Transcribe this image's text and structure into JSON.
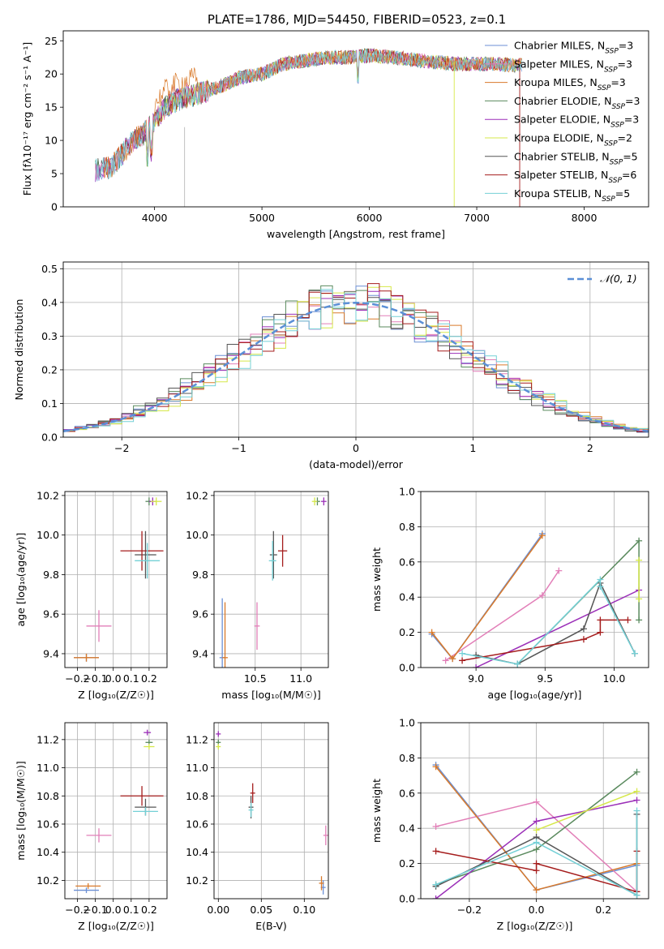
{
  "page_title": "PLATE=1786, MJD=54450, FIBERID=0523, z=0.1",
  "series_names": [
    "Chabrier MILES, N_SSP=3",
    "Salpeter MILES, N_SSP=3",
    "Kroupa MILES, N_SSP=3",
    "Chabrier ELODIE, N_SSP=3",
    "Salpeter ELODIE, N_SSP=3",
    "Kroupa ELODIE, N_SSP=2",
    "Chabrier STELIB, N_SSP=5",
    "Salpeter STELIB, N_SSP=6",
    "Kroupa STELIB, N_SSP=5"
  ],
  "colors": [
    "#6b8fd4",
    "#e27fb8",
    "#d97a2b",
    "#5a8a5e",
    "#9b2fb8",
    "#d6e84a",
    "#555555",
    "#a51d1d",
    "#74d0d6"
  ],
  "chart_data": [
    {
      "id": "spectrum",
      "type": "line",
      "title": "PLATE=1786, MJD=54450, FIBERID=0523, z=0.1",
      "xlabel": "wavelength [Angstrom, rest frame]",
      "ylabel": "Flux [fλ10⁻¹⁷ erg cm⁻² s⁻¹ A⁻¹]",
      "xlim": [
        3150,
        8600
      ],
      "ylim": [
        0,
        26.5
      ],
      "xticks": [
        4000,
        5000,
        6000,
        7000,
        8000
      ],
      "yticks": [
        0,
        5,
        10,
        15,
        20,
        25
      ],
      "legend": [
        "Chabrier MILES, N_SSP=3",
        "Salpeter MILES, N_SSP=3",
        "Kroupa MILES, N_SSP=3",
        "Chabrier ELODIE, N_SSP=3",
        "Salpeter ELODIE, N_SSP=3",
        "Kroupa ELODIE, N_SSP=2",
        "Chabrier STELIB, N_SSP=5",
        "Salpeter STELIB, N_SSP=6",
        "Kroupa STELIB, N_SSP=5"
      ],
      "legend_position": "right",
      "approx_continuum": [
        [
          3450,
          5.5
        ],
        [
          3600,
          6
        ],
        [
          3700,
          8
        ],
        [
          3800,
          10
        ],
        [
          3900,
          11
        ],
        [
          4000,
          13
        ],
        [
          4100,
          15
        ],
        [
          4200,
          16
        ],
        [
          4400,
          17
        ],
        [
          4600,
          18
        ],
        [
          4800,
          19.5
        ],
        [
          5000,
          20
        ],
        [
          5200,
          21.5
        ],
        [
          5400,
          22
        ],
        [
          5600,
          22.5
        ],
        [
          5800,
          22.5
        ],
        [
          6000,
          22.8
        ],
        [
          6200,
          22.5
        ],
        [
          6500,
          22
        ],
        [
          6800,
          21.5
        ],
        [
          7000,
          21.5
        ],
        [
          7200,
          21.5
        ],
        [
          7400,
          21.3
        ]
      ]
    },
    {
      "id": "residuals",
      "type": "line",
      "xlabel": "(data-model)/error",
      "ylabel": "Normed distribution",
      "xlim": [
        -2.5,
        2.5
      ],
      "ylim": [
        0,
        0.52
      ],
      "xticks": [
        -2,
        -1,
        0,
        1,
        2
      ],
      "xtick_labels": [
        "−2",
        "−1",
        "0",
        "1",
        "2"
      ],
      "yticks": [
        0,
        0.1,
        0.2,
        0.3,
        0.4,
        0.5
      ],
      "ytick_labels": [
        "0.0",
        "0.1",
        "0.2",
        "0.3",
        "0.4",
        "0.5"
      ],
      "legend": [
        "𝒩(0, 1)"
      ],
      "legend_position": "top-right",
      "gaussian": {
        "mu": 0,
        "sigma": 1,
        "style": "dashed",
        "color": "#5b8fd6"
      },
      "histogram_bins": 50
    },
    {
      "id": "age_vs_Z",
      "type": "scatter",
      "xlabel": "Z [log₁₀(Z/Z☉)]",
      "ylabel": "age  [log₁₀(age/yr)]",
      "xlim": [
        -0.27,
        0.3
      ],
      "ylim": [
        9.33,
        10.22
      ],
      "xticks": [
        -0.2,
        -0.1,
        0.0,
        0.1,
        0.2
      ],
      "xtick_labels": [
        "−0.2",
        "−0.1",
        "0.0",
        "0.1",
        "0.2"
      ],
      "yticks": [
        9.4,
        9.6,
        9.8,
        10.0,
        10.2
      ],
      "ytick_labels": [
        "9.4",
        "9.6",
        "9.8",
        "10.0",
        "10.2"
      ],
      "points": [
        {
          "s": 0,
          "x": -0.15,
          "xerr": 0.07,
          "y": 9.38,
          "yerr": 0.02
        },
        {
          "s": 1,
          "x": -0.08,
          "xerr": 0.07,
          "y": 9.54,
          "yerr": 0.08
        },
        {
          "s": 2,
          "x": -0.15,
          "xerr": 0.07,
          "y": 9.38,
          "yerr": 0.02
        },
        {
          "s": 3,
          "x": 0.2,
          "xerr": 0.02,
          "y": 10.17,
          "yerr": 0.02
        },
        {
          "s": 4,
          "x": 0.22,
          "xerr": 0.02,
          "y": 10.17,
          "yerr": 0.02
        },
        {
          "s": 5,
          "x": 0.24,
          "xerr": 0.03,
          "y": 10.17,
          "yerr": 0.02
        },
        {
          "s": 6,
          "x": 0.18,
          "xerr": 0.06,
          "y": 9.9,
          "yerr": 0.12
        },
        {
          "s": 7,
          "x": 0.16,
          "xerr": 0.12,
          "y": 9.92,
          "yerr": 0.1
        },
        {
          "s": 8,
          "x": 0.19,
          "xerr": 0.07,
          "y": 9.87,
          "yerr": 0.09
        }
      ]
    },
    {
      "id": "age_vs_mass",
      "type": "scatter",
      "xlabel": "mass [log₁₀(M/M☉)]",
      "ylabel": "",
      "xlim": [
        10.05,
        11.3
      ],
      "ylim": [
        9.33,
        10.22
      ],
      "xticks": [
        10.5,
        11.0
      ],
      "xtick_labels": [
        "10.5",
        "11.0"
      ],
      "yticks": [
        9.4,
        9.6,
        9.8,
        10.0,
        10.2
      ],
      "ytick_labels": [
        "9.4",
        "9.6",
        "9.8",
        "10.0",
        "10.2"
      ],
      "points": [
        {
          "s": 0,
          "x": 10.14,
          "xerr": 0.03,
          "y": 9.38,
          "yerr": 0.3
        },
        {
          "s": 1,
          "x": 10.52,
          "xerr": 0.03,
          "y": 9.54,
          "yerr": 0.12
        },
        {
          "s": 2,
          "x": 10.17,
          "xerr": 0.03,
          "y": 9.38,
          "yerr": 0.28
        },
        {
          "s": 3,
          "x": 11.18,
          "xerr": 0.03,
          "y": 10.17,
          "yerr": 0.02
        },
        {
          "s": 4,
          "x": 11.25,
          "xerr": 0.03,
          "y": 10.17,
          "yerr": 0.02
        },
        {
          "s": 5,
          "x": 11.15,
          "xerr": 0.03,
          "y": 10.17,
          "yerr": 0.02
        },
        {
          "s": 6,
          "x": 10.7,
          "xerr": 0.04,
          "y": 9.9,
          "yerr": 0.12
        },
        {
          "s": 7,
          "x": 10.8,
          "xerr": 0.05,
          "y": 9.92,
          "yerr": 0.08
        },
        {
          "s": 8,
          "x": 10.69,
          "xerr": 0.04,
          "y": 9.87,
          "yerr": 0.1
        }
      ]
    },
    {
      "id": "weight_vs_age",
      "type": "line",
      "xlabel": "age  [log₁₀(age/yr)]",
      "ylabel": "mass weight",
      "xlim": [
        8.6,
        10.25
      ],
      "ylim": [
        0,
        1.0
      ],
      "xticks": [
        9.0,
        9.5,
        10.0
      ],
      "xtick_labels": [
        "9.0",
        "9.5",
        "10.0"
      ],
      "yticks": [
        0,
        0.2,
        0.4,
        0.6,
        0.8,
        1.0
      ],
      "ytick_labels": [
        "0.0",
        "0.2",
        "0.4",
        "0.6",
        "0.8",
        "1.0"
      ],
      "series": [
        {
          "s": 0,
          "x": [
            8.68,
            8.83,
            9.48
          ],
          "y": [
            0.19,
            0.05,
            0.76
          ]
        },
        {
          "s": 1,
          "x": [
            8.78,
            9.48,
            9.6
          ],
          "y": [
            0.04,
            0.41,
            0.55
          ]
        },
        {
          "s": 2,
          "x": [
            8.68,
            8.83,
            9.48
          ],
          "y": [
            0.2,
            0.05,
            0.75
          ]
        },
        {
          "s": 3,
          "x": [
            9.3,
            10.18,
            10.18
          ],
          "y": [
            0.02,
            0.72,
            0.27
          ]
        },
        {
          "s": 4,
          "x": [
            9.0,
            10.18
          ],
          "y": [
            0.0,
            0.44
          ]
        },
        {
          "s": 5,
          "x": [
            10.18,
            10.18
          ],
          "y": [
            0.61,
            0.39
          ]
        },
        {
          "s": 6,
          "x": [
            9.0,
            9.3,
            9.78,
            9.9,
            10.15
          ],
          "y": [
            0.07,
            0.02,
            0.22,
            0.48,
            0.08
          ]
        },
        {
          "s": 7,
          "x": [
            8.9,
            9.78,
            9.9,
            9.9,
            10.1
          ],
          "y": [
            0.04,
            0.16,
            0.2,
            0.27,
            0.27
          ]
        },
        {
          "s": 8,
          "x": [
            8.9,
            9.3,
            9.9,
            9.9,
            10.15
          ],
          "y": [
            0.08,
            0.02,
            0.5,
            0.46,
            0.08
          ]
        }
      ]
    },
    {
      "id": "mass_vs_Z",
      "type": "scatter",
      "xlabel": "Z [log₁₀(Z/Z☉)]",
      "ylabel": "mass [log₁₀(M/M☉)]",
      "xlim": [
        -0.27,
        0.3
      ],
      "ylim": [
        10.07,
        11.32
      ],
      "xticks": [
        -0.2,
        -0.1,
        0.0,
        0.1,
        0.2
      ],
      "xtick_labels": [
        "−0.2",
        "−0.1",
        "0.0",
        "0.1",
        "0.2"
      ],
      "yticks": [
        10.2,
        10.4,
        10.6,
        10.8,
        11.0,
        11.2
      ],
      "ytick_labels": [
        "10.2",
        "10.4",
        "10.6",
        "10.8",
        "11.0",
        "11.2"
      ],
      "points": [
        {
          "s": 0,
          "x": -0.15,
          "xerr": 0.07,
          "y": 10.13,
          "yerr": 0.02
        },
        {
          "s": 1,
          "x": -0.08,
          "xerr": 0.07,
          "y": 10.52,
          "yerr": 0.05
        },
        {
          "s": 2,
          "x": -0.14,
          "xerr": 0.07,
          "y": 10.16,
          "yerr": 0.02
        },
        {
          "s": 3,
          "x": 0.2,
          "xerr": 0.02,
          "y": 11.18,
          "yerr": 0.02
        },
        {
          "s": 4,
          "x": 0.19,
          "xerr": 0.02,
          "y": 11.25,
          "yerr": 0.02
        },
        {
          "s": 5,
          "x": 0.2,
          "xerr": 0.03,
          "y": 11.15,
          "yerr": 0.02
        },
        {
          "s": 6,
          "x": 0.18,
          "xerr": 0.06,
          "y": 10.72,
          "yerr": 0.06
        },
        {
          "s": 7,
          "x": 0.16,
          "xerr": 0.12,
          "y": 10.8,
          "yerr": 0.07
        },
        {
          "s": 8,
          "x": 0.18,
          "xerr": 0.07,
          "y": 10.69,
          "yerr": 0.03
        }
      ]
    },
    {
      "id": "mass_vs_ebv",
      "type": "scatter",
      "xlabel": "E(B-V)",
      "ylabel": "",
      "xlim": [
        -0.005,
        0.128
      ],
      "ylim": [
        10.07,
        11.32
      ],
      "xticks": [
        0.0,
        0.05,
        0.1
      ],
      "xtick_labels": [
        "0.00",
        "0.05",
        "0.10"
      ],
      "yticks": [
        10.2,
        10.4,
        10.6,
        10.8,
        11.0,
        11.2
      ],
      "ytick_labels": [
        "10.2",
        "10.4",
        "10.6",
        "10.8",
        "11.0",
        "11.2"
      ],
      "points": [
        {
          "s": 0,
          "x": 0.122,
          "y": 10.15,
          "yerr": 0.05
        },
        {
          "s": 1,
          "x": 0.125,
          "y": 10.52,
          "yerr": 0.07
        },
        {
          "s": 2,
          "x": 0.12,
          "y": 10.18,
          "yerr": 0.05
        },
        {
          "s": 3,
          "x": 0.0,
          "y": 11.18,
          "yerr": 0.02
        },
        {
          "s": 4,
          "x": 0.0,
          "y": 11.24,
          "yerr": 0.02
        },
        {
          "s": 5,
          "x": 0.0,
          "y": 11.15,
          "yerr": 0.02
        },
        {
          "s": 6,
          "x": 0.038,
          "y": 10.72,
          "yerr": 0.08
        },
        {
          "s": 7,
          "x": 0.04,
          "y": 10.82,
          "yerr": 0.07
        },
        {
          "s": 8,
          "x": 0.038,
          "y": 10.7,
          "yerr": 0.05
        }
      ]
    },
    {
      "id": "weight_vs_Z",
      "type": "line",
      "xlabel": "Z [log₁₀(Z/Z☉)]",
      "ylabel": "mass weight",
      "xlim": [
        -0.345,
        0.335
      ],
      "ylim": [
        0,
        1.0
      ],
      "xticks": [
        -0.2,
        0.0,
        0.2
      ],
      "xtick_labels": [
        "−0.2",
        "0.0",
        "0.2"
      ],
      "yticks": [
        0,
        0.2,
        0.4,
        0.6,
        0.8,
        1.0
      ],
      "ytick_labels": [
        "0.0",
        "0.2",
        "0.4",
        "0.6",
        "0.8",
        "1.0"
      ],
      "series": [
        {
          "s": 0,
          "x": [
            -0.3,
            0.0,
            0.3
          ],
          "y": [
            0.76,
            0.05,
            0.19
          ]
        },
        {
          "s": 1,
          "x": [
            -0.3,
            0.0,
            0.3
          ],
          "y": [
            0.41,
            0.55,
            0.04
          ]
        },
        {
          "s": 2,
          "x": [
            -0.3,
            0.0,
            0.3
          ],
          "y": [
            0.75,
            0.05,
            0.2
          ]
        },
        {
          "s": 3,
          "x": [
            -0.3,
            0.0,
            0.3
          ],
          "y": [
            0.08,
            0.28,
            0.72
          ]
        },
        {
          "s": 4,
          "x": [
            -0.3,
            0.0,
            0.3
          ],
          "y": [
            0.0,
            0.44,
            0.56
          ]
        },
        {
          "s": 5,
          "x": [
            0.0,
            0.3
          ],
          "y": [
            0.39,
            0.61
          ]
        },
        {
          "s": 6,
          "x": [
            -0.3,
            0.0,
            0.3,
            0.3
          ],
          "y": [
            0.07,
            0.35,
            0.02,
            0.48
          ]
        },
        {
          "s": 7,
          "x": [
            -0.3,
            0.0,
            0.0,
            0.3,
            0.3
          ],
          "y": [
            0.27,
            0.16,
            0.2,
            0.04,
            0.27
          ]
        },
        {
          "s": 8,
          "x": [
            -0.3,
            0.0,
            0.3,
            0.3
          ],
          "y": [
            0.08,
            0.32,
            0.02,
            0.5
          ]
        }
      ]
    }
  ]
}
